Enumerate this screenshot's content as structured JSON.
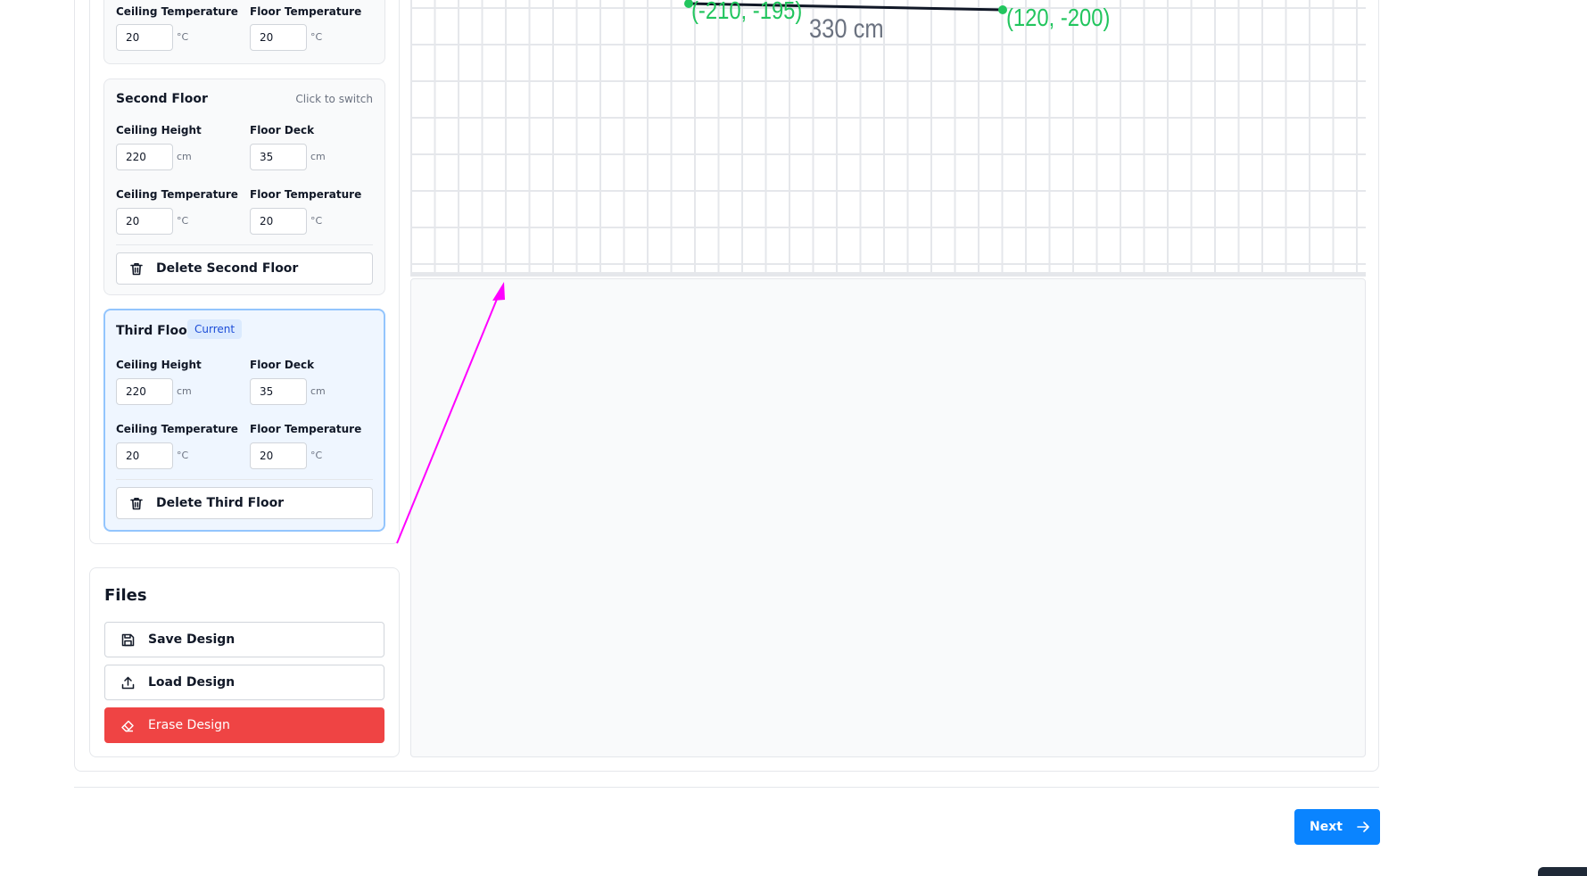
{
  "floors": {
    "first": {
      "ceiling_temp_label": "Ceiling Temperature",
      "ceiling_temp_value": "20",
      "ceiling_temp_unit": "°C",
      "floor_temp_label": "Floor Temperature",
      "floor_temp_value": "20",
      "floor_temp_unit": "°C"
    },
    "second": {
      "title": "Second Floor",
      "switch_hint": "Click to switch",
      "ceiling_height_label": "Ceiling Height",
      "ceiling_height_value": "220",
      "ceiling_height_unit": "cm",
      "floor_deck_label": "Floor Deck",
      "floor_deck_value": "35",
      "floor_deck_unit": "cm",
      "ceiling_temp_label": "Ceiling Temperature",
      "ceiling_temp_value": "20",
      "ceiling_temp_unit": "°C",
      "floor_temp_label": "Floor Temperature",
      "floor_temp_value": "20",
      "floor_temp_unit": "°C",
      "delete_label": "Delete Second Floor"
    },
    "third": {
      "title": "Third Floor",
      "badge": "Current",
      "ceiling_height_label": "Ceiling Height",
      "ceiling_height_value": "220",
      "ceiling_height_unit": "cm",
      "floor_deck_label": "Floor Deck",
      "floor_deck_value": "35",
      "floor_deck_unit": "cm",
      "ceiling_temp_label": "Ceiling Temperature",
      "ceiling_temp_value": "20",
      "ceiling_temp_unit": "°C",
      "floor_temp_label": "Floor Temperature",
      "floor_temp_value": "20",
      "floor_temp_unit": "°C",
      "delete_label": "Delete Third Floor"
    }
  },
  "files": {
    "title": "Files",
    "save_label": "Save Design",
    "load_label": "Load Design",
    "erase_label": "Erase Design"
  },
  "canvas": {
    "point_a": "(-210, -195)",
    "point_b": "(120, -200)",
    "dimension": "330 cm"
  },
  "footer": {
    "next_label": "Next"
  },
  "colors": {
    "primary": "#0a84ff",
    "danger": "#ef4444",
    "coord_green": "#22c55e",
    "annotation_arrow": "#ff00ff"
  }
}
